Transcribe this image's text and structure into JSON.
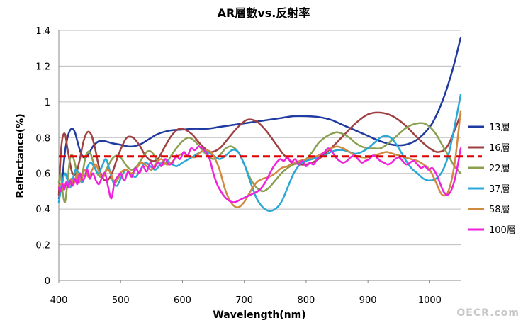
{
  "chart_data": {
    "type": "line",
    "title": "AR層數vs.反射率",
    "xlabel": "Wavelength(nm)",
    "ylabel": "Reflectance(%)",
    "xlim": [
      400,
      1050
    ],
    "ylim": [
      0,
      1.4
    ],
    "xticks": [
      "400",
      "500",
      "600",
      "700",
      "800",
      "900",
      "1000"
    ],
    "yticks": [
      "0",
      "0.2",
      "0.4",
      "0.6",
      "0.8",
      "1",
      "1.2",
      "1.4"
    ],
    "grid": "horizontal",
    "legend_position": "right",
    "reference_line": {
      "y": 0.695,
      "color": "#dd0000",
      "style": "dashed"
    },
    "watermark": "OECR.com",
    "series": [
      {
        "name": "13層",
        "color": "#1f3aa0",
        "x": [
          400,
          403,
          406,
          410,
          414,
          418,
          422,
          426,
          430,
          435,
          440,
          447,
          455,
          465,
          475,
          485,
          500,
          515,
          530,
          545,
          560,
          580,
          600,
          620,
          640,
          660,
          680,
          700,
          720,
          740,
          760,
          780,
          800,
          820,
          840,
          860,
          880,
          900,
          920,
          940,
          960,
          980,
          1000,
          1010,
          1020,
          1030,
          1040,
          1050
        ],
        "y": [
          0.46,
          0.5,
          0.58,
          0.72,
          0.8,
          0.84,
          0.85,
          0.83,
          0.78,
          0.72,
          0.69,
          0.7,
          0.75,
          0.78,
          0.78,
          0.77,
          0.76,
          0.75,
          0.76,
          0.79,
          0.82,
          0.84,
          0.845,
          0.85,
          0.85,
          0.86,
          0.87,
          0.88,
          0.89,
          0.9,
          0.91,
          0.92,
          0.92,
          0.915,
          0.9,
          0.87,
          0.84,
          0.81,
          0.78,
          0.76,
          0.76,
          0.79,
          0.86,
          0.92,
          1.0,
          1.1,
          1.22,
          1.36
        ]
      },
      {
        "name": "16層",
        "color": "#a04040",
        "x": [
          400,
          403,
          406,
          410,
          414,
          418,
          422,
          428,
          434,
          440,
          446,
          452,
          458,
          464,
          470,
          478,
          486,
          494,
          502,
          510,
          520,
          530,
          540,
          550,
          560,
          570,
          580,
          590,
          600,
          615,
          630,
          645,
          660,
          675,
          690,
          705,
          720,
          735,
          750,
          765,
          780,
          800,
          820,
          840,
          860,
          880,
          900,
          920,
          940,
          960,
          980,
          1000,
          1015,
          1030,
          1050
        ],
        "y": [
          0.48,
          0.7,
          0.8,
          0.82,
          0.74,
          0.66,
          0.6,
          0.6,
          0.68,
          0.78,
          0.83,
          0.82,
          0.75,
          0.65,
          0.58,
          0.56,
          0.6,
          0.68,
          0.75,
          0.8,
          0.8,
          0.76,
          0.7,
          0.67,
          0.68,
          0.74,
          0.8,
          0.84,
          0.85,
          0.82,
          0.76,
          0.72,
          0.74,
          0.8,
          0.86,
          0.9,
          0.89,
          0.84,
          0.77,
          0.7,
          0.66,
          0.65,
          0.68,
          0.74,
          0.81,
          0.88,
          0.93,
          0.94,
          0.92,
          0.87,
          0.8,
          0.74,
          0.72,
          0.76,
          0.93
        ]
      },
      {
        "name": "22層",
        "color": "#8aa050",
        "x": [
          400,
          403,
          406,
          410,
          414,
          418,
          422,
          427,
          432,
          438,
          444,
          450,
          456,
          462,
          470,
          478,
          486,
          494,
          502,
          510,
          518,
          526,
          534,
          542,
          550,
          558,
          566,
          574,
          582,
          590,
          600,
          610,
          620,
          630,
          640,
          650,
          660,
          670,
          680,
          690,
          700,
          710,
          720,
          730,
          740,
          750,
          760,
          770,
          780,
          790,
          800,
          810,
          820,
          830,
          840,
          850,
          860,
          870,
          880,
          890,
          900,
          910,
          920,
          930,
          940,
          950,
          960,
          970,
          980,
          990,
          1000,
          1010,
          1020,
          1030,
          1040,
          1050
        ],
        "y": [
          0.55,
          0.6,
          0.5,
          0.44,
          0.55,
          0.68,
          0.7,
          0.64,
          0.55,
          0.6,
          0.7,
          0.72,
          0.66,
          0.6,
          0.58,
          0.63,
          0.68,
          0.7,
          0.68,
          0.64,
          0.62,
          0.64,
          0.68,
          0.72,
          0.72,
          0.68,
          0.65,
          0.66,
          0.7,
          0.74,
          0.78,
          0.8,
          0.78,
          0.74,
          0.7,
          0.68,
          0.7,
          0.74,
          0.75,
          0.72,
          0.65,
          0.57,
          0.52,
          0.5,
          0.52,
          0.56,
          0.6,
          0.63,
          0.65,
          0.66,
          0.68,
          0.72,
          0.77,
          0.8,
          0.82,
          0.83,
          0.82,
          0.8,
          0.77,
          0.75,
          0.74,
          0.74,
          0.74,
          0.76,
          0.79,
          0.82,
          0.85,
          0.87,
          0.88,
          0.88,
          0.86,
          0.82,
          0.76,
          0.7,
          0.64,
          0.6
        ]
      },
      {
        "name": "37層",
        "color": "#29a8d8",
        "x": [
          400,
          403,
          406,
          410,
          414,
          418,
          422,
          427,
          432,
          437,
          442,
          447,
          452,
          458,
          464,
          470,
          476,
          482,
          488,
          494,
          500,
          508,
          516,
          524,
          532,
          540,
          548,
          556,
          564,
          572,
          580,
          590,
          600,
          610,
          620,
          630,
          640,
          650,
          660,
          670,
          680,
          690,
          700,
          710,
          720,
          730,
          740,
          750,
          760,
          770,
          780,
          790,
          800,
          810,
          820,
          830,
          840,
          850,
          860,
          870,
          880,
          890,
          900,
          910,
          920,
          930,
          940,
          950,
          960,
          970,
          980,
          990,
          1000,
          1010,
          1020,
          1030,
          1040,
          1050
        ],
        "y": [
          0.44,
          0.5,
          0.55,
          0.6,
          0.56,
          0.52,
          0.56,
          0.62,
          0.6,
          0.55,
          0.58,
          0.64,
          0.66,
          0.63,
          0.6,
          0.64,
          0.68,
          0.62,
          0.55,
          0.53,
          0.57,
          0.62,
          0.6,
          0.58,
          0.62,
          0.66,
          0.64,
          0.62,
          0.65,
          0.68,
          0.66,
          0.64,
          0.66,
          0.68,
          0.7,
          0.72,
          0.72,
          0.7,
          0.68,
          0.7,
          0.73,
          0.72,
          0.65,
          0.55,
          0.46,
          0.41,
          0.39,
          0.4,
          0.44,
          0.52,
          0.6,
          0.65,
          0.67,
          0.68,
          0.69,
          0.7,
          0.72,
          0.73,
          0.73,
          0.72,
          0.71,
          0.72,
          0.74,
          0.77,
          0.8,
          0.81,
          0.79,
          0.74,
          0.68,
          0.63,
          0.6,
          0.57,
          0.56,
          0.57,
          0.61,
          0.7,
          0.86,
          1.04
        ]
      },
      {
        "name": "58層",
        "color": "#d08a40",
        "x": [
          400,
          404,
          408,
          412,
          416,
          420,
          424,
          430,
          436,
          442,
          448,
          454,
          460,
          466,
          472,
          478,
          484,
          490,
          496,
          502,
          510,
          518,
          526,
          534,
          542,
          550,
          558,
          566,
          574,
          582,
          590,
          600,
          610,
          620,
          630,
          640,
          650,
          660,
          670,
          680,
          690,
          700,
          710,
          720,
          730,
          740,
          750,
          760,
          770,
          780,
          790,
          800,
          810,
          820,
          830,
          840,
          850,
          860,
          870,
          880,
          890,
          900,
          910,
          920,
          930,
          940,
          950,
          960,
          970,
          980,
          990,
          1000,
          1010,
          1020,
          1030,
          1040,
          1050
        ],
        "y": [
          0.53,
          0.54,
          0.51,
          0.55,
          0.52,
          0.57,
          0.54,
          0.6,
          0.56,
          0.62,
          0.58,
          0.62,
          0.65,
          0.6,
          0.58,
          0.62,
          0.6,
          0.55,
          0.57,
          0.61,
          0.62,
          0.6,
          0.63,
          0.66,
          0.64,
          0.62,
          0.66,
          0.68,
          0.65,
          0.66,
          0.69,
          0.71,
          0.7,
          0.69,
          0.72,
          0.73,
          0.7,
          0.62,
          0.5,
          0.43,
          0.41,
          0.44,
          0.5,
          0.55,
          0.57,
          0.58,
          0.6,
          0.63,
          0.64,
          0.66,
          0.67,
          0.68,
          0.69,
          0.7,
          0.72,
          0.74,
          0.75,
          0.74,
          0.72,
          0.7,
          0.69,
          0.69,
          0.7,
          0.71,
          0.72,
          0.71,
          0.7,
          0.69,
          0.68,
          0.67,
          0.65,
          0.62,
          0.55,
          0.48,
          0.5,
          0.65,
          0.95
        ]
      },
      {
        "name": "100層",
        "color": "#ee22dd",
        "x": [
          400,
          403,
          406,
          409,
          412,
          415,
          418,
          422,
          426,
          430,
          434,
          438,
          442,
          446,
          450,
          455,
          460,
          465,
          470,
          475,
          480,
          485,
          490,
          495,
          500,
          506,
          512,
          518,
          524,
          530,
          536,
          542,
          548,
          554,
          560,
          566,
          572,
          578,
          584,
          590,
          596,
          602,
          608,
          614,
          620,
          626,
          632,
          638,
          644,
          650,
          656,
          662,
          668,
          674,
          680,
          686,
          692,
          698,
          704,
          710,
          716,
          722,
          728,
          734,
          740,
          746,
          752,
          758,
          764,
          770,
          776,
          782,
          788,
          794,
          800,
          806,
          812,
          818,
          824,
          830,
          836,
          842,
          848,
          854,
          860,
          866,
          872,
          878,
          884,
          890,
          896,
          902,
          908,
          914,
          920,
          926,
          932,
          938,
          944,
          950,
          956,
          962,
          968,
          974,
          980,
          986,
          992,
          998,
          1004,
          1010,
          1016,
          1022,
          1028,
          1034,
          1040,
          1046,
          1050
        ],
        "y": [
          0.52,
          0.5,
          0.54,
          0.51,
          0.55,
          0.52,
          0.56,
          0.53,
          0.57,
          0.54,
          0.6,
          0.56,
          0.58,
          0.62,
          0.57,
          0.6,
          0.56,
          0.54,
          0.58,
          0.6,
          0.52,
          0.46,
          0.55,
          0.58,
          0.6,
          0.56,
          0.61,
          0.58,
          0.63,
          0.6,
          0.64,
          0.61,
          0.66,
          0.63,
          0.66,
          0.64,
          0.68,
          0.65,
          0.66,
          0.7,
          0.68,
          0.72,
          0.7,
          0.74,
          0.73,
          0.75,
          0.74,
          0.72,
          0.68,
          0.6,
          0.54,
          0.5,
          0.47,
          0.45,
          0.44,
          0.44,
          0.45,
          0.46,
          0.47,
          0.48,
          0.49,
          0.5,
          0.52,
          0.55,
          0.59,
          0.63,
          0.66,
          0.68,
          0.67,
          0.69,
          0.66,
          0.68,
          0.65,
          0.67,
          0.64,
          0.66,
          0.65,
          0.68,
          0.7,
          0.72,
          0.74,
          0.72,
          0.69,
          0.67,
          0.66,
          0.67,
          0.69,
          0.7,
          0.68,
          0.66,
          0.67,
          0.68,
          0.7,
          0.69,
          0.67,
          0.66,
          0.65,
          0.66,
          0.68,
          0.69,
          0.67,
          0.65,
          0.66,
          0.67,
          0.65,
          0.63,
          0.64,
          0.62,
          0.63,
          0.6,
          0.55,
          0.5,
          0.48,
          0.5,
          0.56,
          0.66,
          0.74
        ]
      }
    ]
  }
}
